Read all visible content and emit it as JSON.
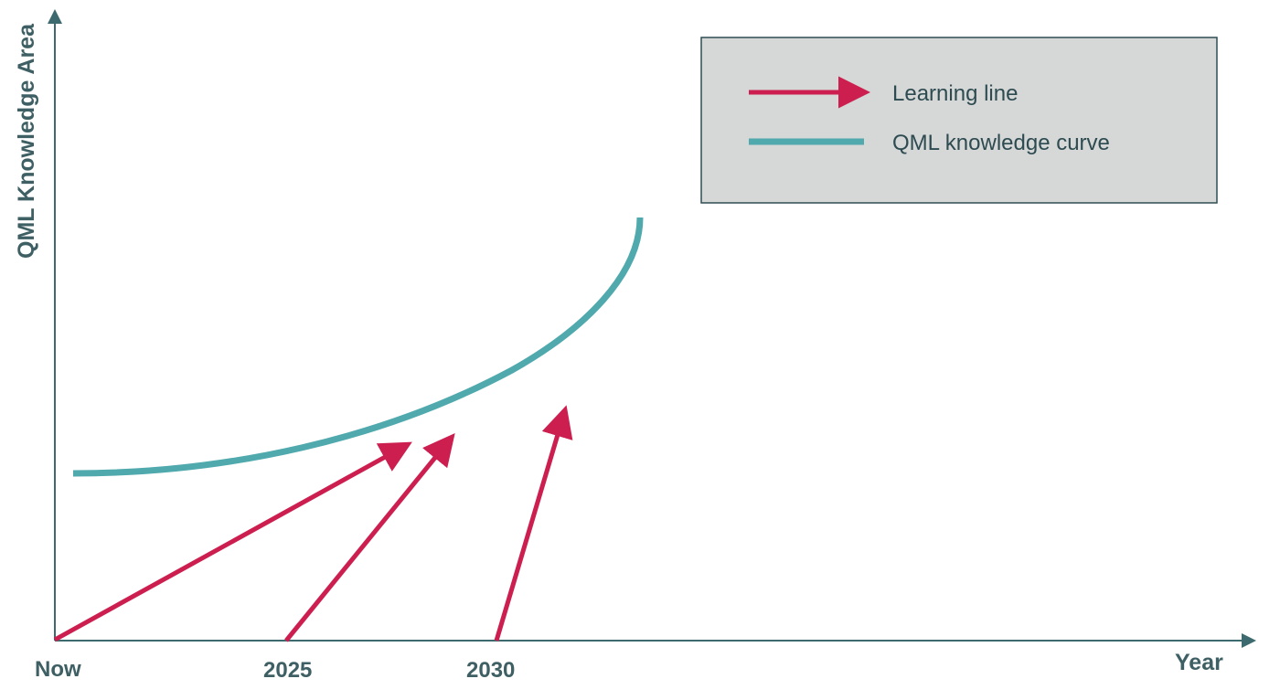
{
  "diagram": {
    "y_axis_title": "QML Knowledge Area",
    "x_axis_title": "Year",
    "x_ticks": [
      "Now",
      "2025",
      "2030"
    ],
    "legend": {
      "learning_line_label": "Learning line",
      "knowledge_curve_label": "QML knowledge curve"
    },
    "colors": {
      "axis": "#3d6a6e",
      "axis_text": "#3e5f63",
      "learning_line": "#cc1f4f",
      "knowledge_curve": "#4fa9ad",
      "legend_background": "#d6d7d7",
      "legend_border": "#2f4f53",
      "legend_text": "#2d4b50"
    }
  }
}
